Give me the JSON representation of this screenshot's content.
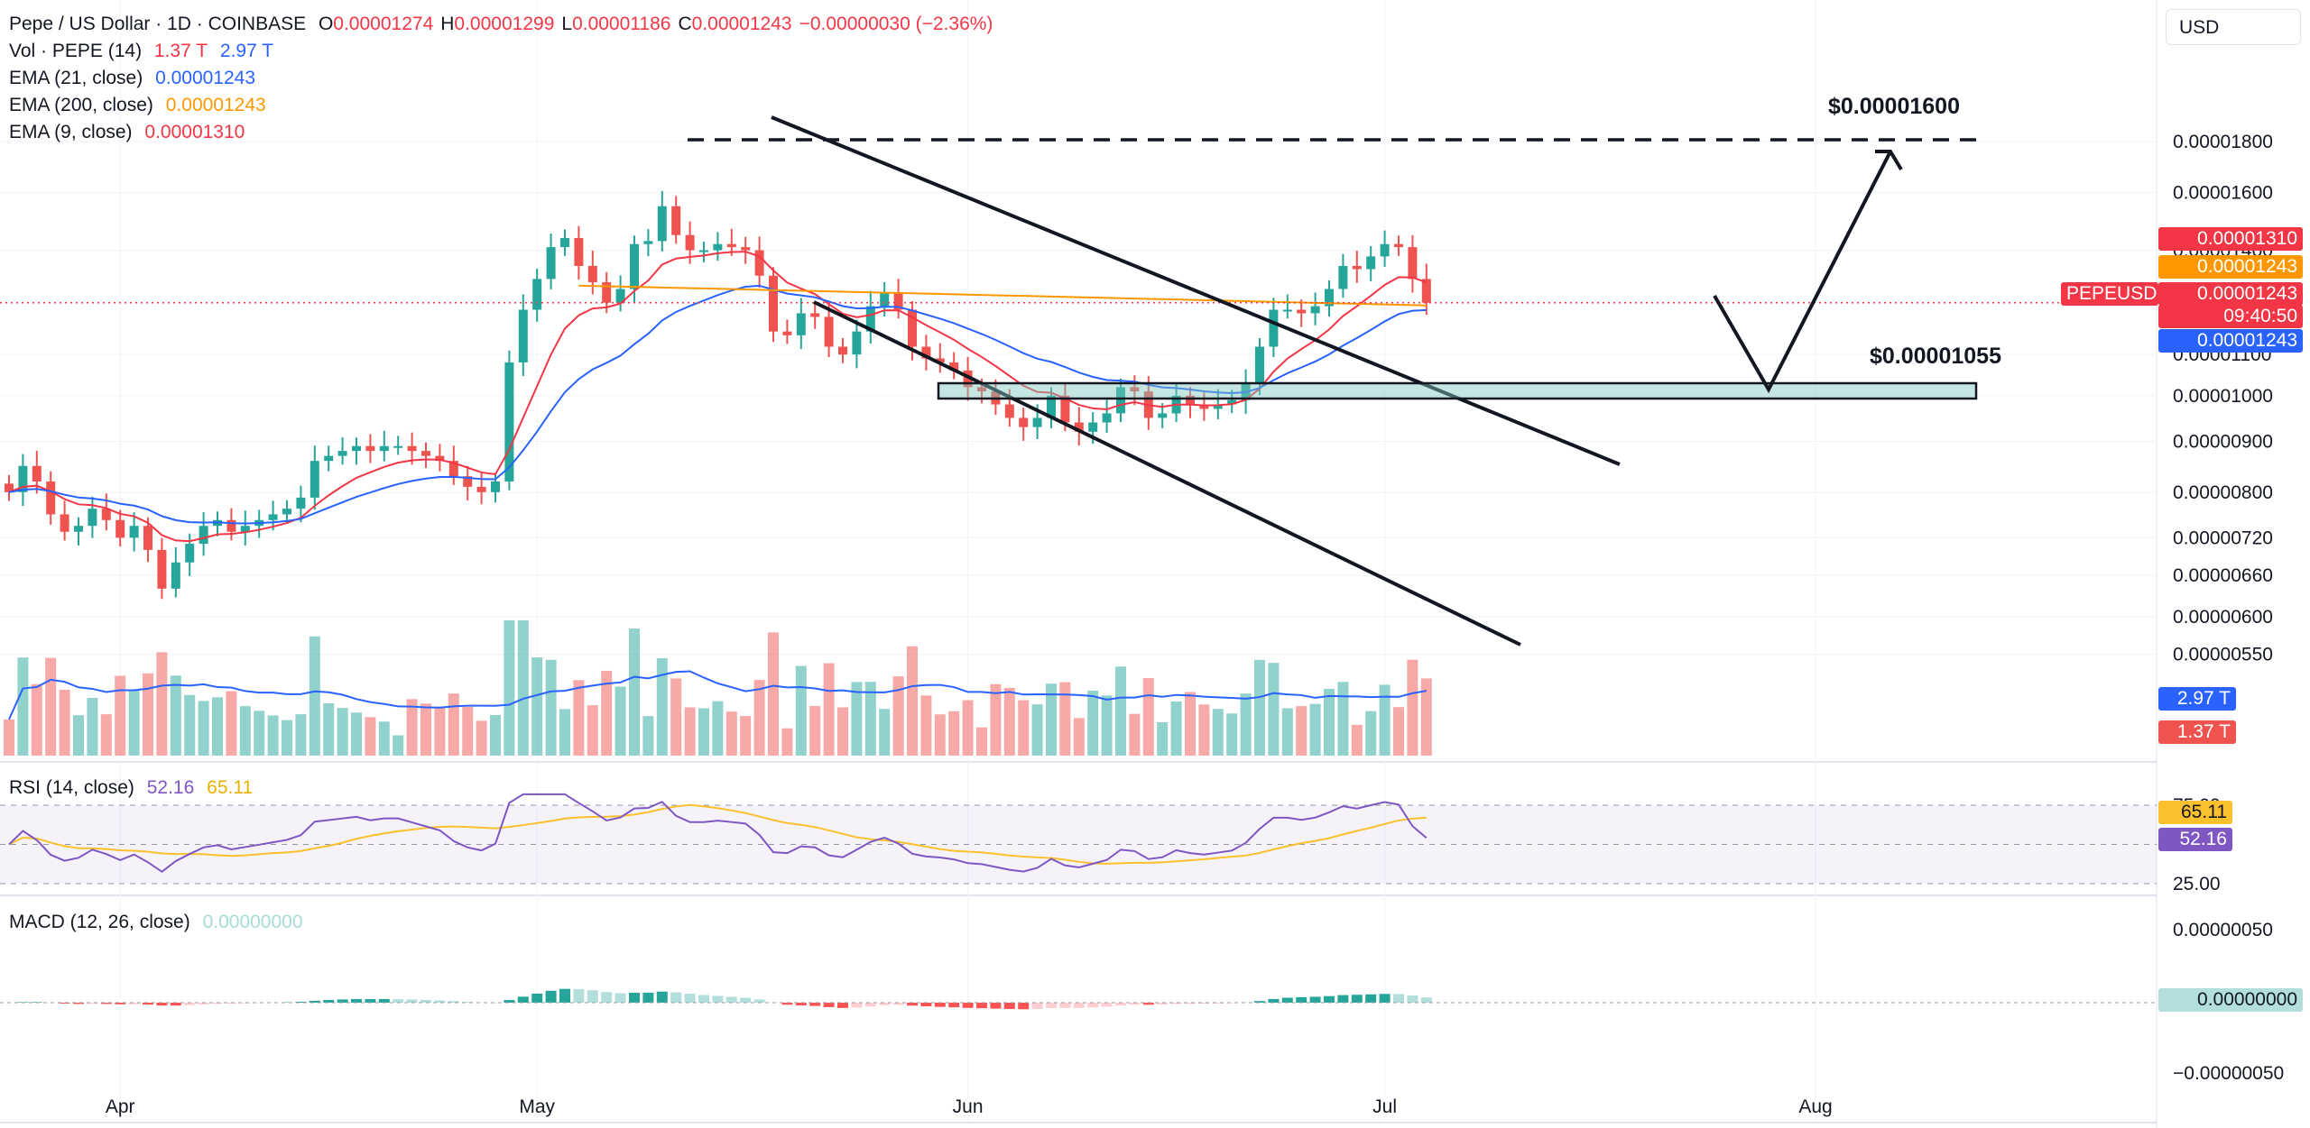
{
  "header": {
    "symbol": "Pepe / US Dollar · 1D · COINBASE",
    "open_label": "O",
    "open": "0.00001274",
    "high_label": "H",
    "high": "0.00001299",
    "low_label": "L",
    "low": "0.00001186",
    "close_label": "C",
    "close": "0.00001243",
    "change": "−0.00000030 (−2.36%)"
  },
  "legends": {
    "vol": {
      "label": "Vol · PEPE (14)",
      "v1": "1.37 T",
      "v2": "2.97 T"
    },
    "ema21": {
      "label": "EMA (21, close)",
      "value": "0.00001243"
    },
    "ema200": {
      "label": "EMA (200, close)",
      "value": "0.00001243"
    },
    "ema9": {
      "label": "EMA (9, close)",
      "value": "0.00001310"
    },
    "rsi": {
      "label": "RSI (14, close)",
      "v1": "52.16",
      "v2": "65.11"
    },
    "macd": {
      "label": "MACD (12, 26, close)",
      "value": "0.00000000"
    }
  },
  "currency_button": "USD",
  "annotations": {
    "target": "$0.00001600",
    "support": "$0.00001055"
  },
  "tags": {
    "ema9": "0.00001310",
    "ema200": "0.00001243",
    "pepe_label": "PEPEUSD",
    "price": "0.00001243",
    "countdown": "09:40:50",
    "ema21": "0.00001243",
    "vol_ma": "2.97 T",
    "vol": "1.37 T",
    "rsi_ma": "65.11",
    "rsi": "52.16",
    "macd": "0.00000000"
  },
  "colors": {
    "up": "#26a69a",
    "down": "#ef5350",
    "ema9": "#f23645",
    "ema21": "#2962ff",
    "ema200": "#ff9800",
    "rsi": "#7e57c2",
    "rsi_ma": "#fbc02d"
  },
  "chart_data": [
    {
      "type": "candlestick",
      "title": "Pepe / US Dollar · 1D · COINBASE",
      "scale": "log",
      "y_ticks": [
        "0.00001800",
        "0.00001600",
        "0.00001400",
        "0.00001100",
        "0.00001000",
        "0.00000900",
        "0.00000800",
        "0.00000720",
        "0.00000660",
        "0.00000600",
        "0.00000550"
      ],
      "x_labels": [
        "Apr",
        "May",
        "Jun",
        "Jul",
        "Aug"
      ],
      "start_date": "2024-03-24",
      "close": [
        8.0,
        8.5,
        8.2,
        7.6,
        7.3,
        7.4,
        7.7,
        7.5,
        7.2,
        7.4,
        7.0,
        6.4,
        6.8,
        7.1,
        7.4,
        7.5,
        7.3,
        7.4,
        7.5,
        7.6,
        7.7,
        7.9,
        8.6,
        8.7,
        8.8,
        8.9,
        8.8,
        8.9,
        8.9,
        8.8,
        8.7,
        8.6,
        8.3,
        8.1,
        8.0,
        8.2,
        10.8,
        12.2,
        13.1,
        14.1,
        14.4,
        13.5,
        13.0,
        12.4,
        12.8,
        14.2,
        14.3,
        15.5,
        14.5,
        14.0,
        14.0,
        14.2,
        14.1,
        14.0,
        13.2,
        11.6,
        11.5,
        12.1,
        12.0,
        11.2,
        11.0,
        11.6,
        12.3,
        12.7,
        12.2,
        11.2,
        10.9,
        10.8,
        10.6,
        10.2,
        10.1,
        9.8,
        9.5,
        9.3,
        9.5,
        10.0,
        9.4,
        9.2,
        9.4,
        9.6,
        10.2,
        10.1,
        9.5,
        9.6,
        10.0,
        9.8,
        9.7,
        9.8,
        9.9,
        10.3,
        11.2,
        12.2,
        12.2,
        12.1,
        12.3,
        12.8,
        13.5,
        13.4,
        13.8,
        14.2,
        14.1,
        13.1,
        12.4
      ],
      "ema9_value": "0.00001310",
      "ema21_value": "0.00001243",
      "ema200_value": "0.00001243"
    },
    {
      "type": "bar",
      "name": "Volume",
      "unit": "T",
      "v1": "1.37 T",
      "v2": "2.97 T"
    },
    {
      "type": "line",
      "name": "RSI",
      "levels": [
        75,
        50,
        25
      ],
      "rsi": "52.16",
      "ma": "65.11"
    },
    {
      "type": "bar",
      "name": "MACD",
      "y_ticks": [
        "0.00000050",
        "0.00000000",
        "−0.00000050"
      ]
    }
  ]
}
